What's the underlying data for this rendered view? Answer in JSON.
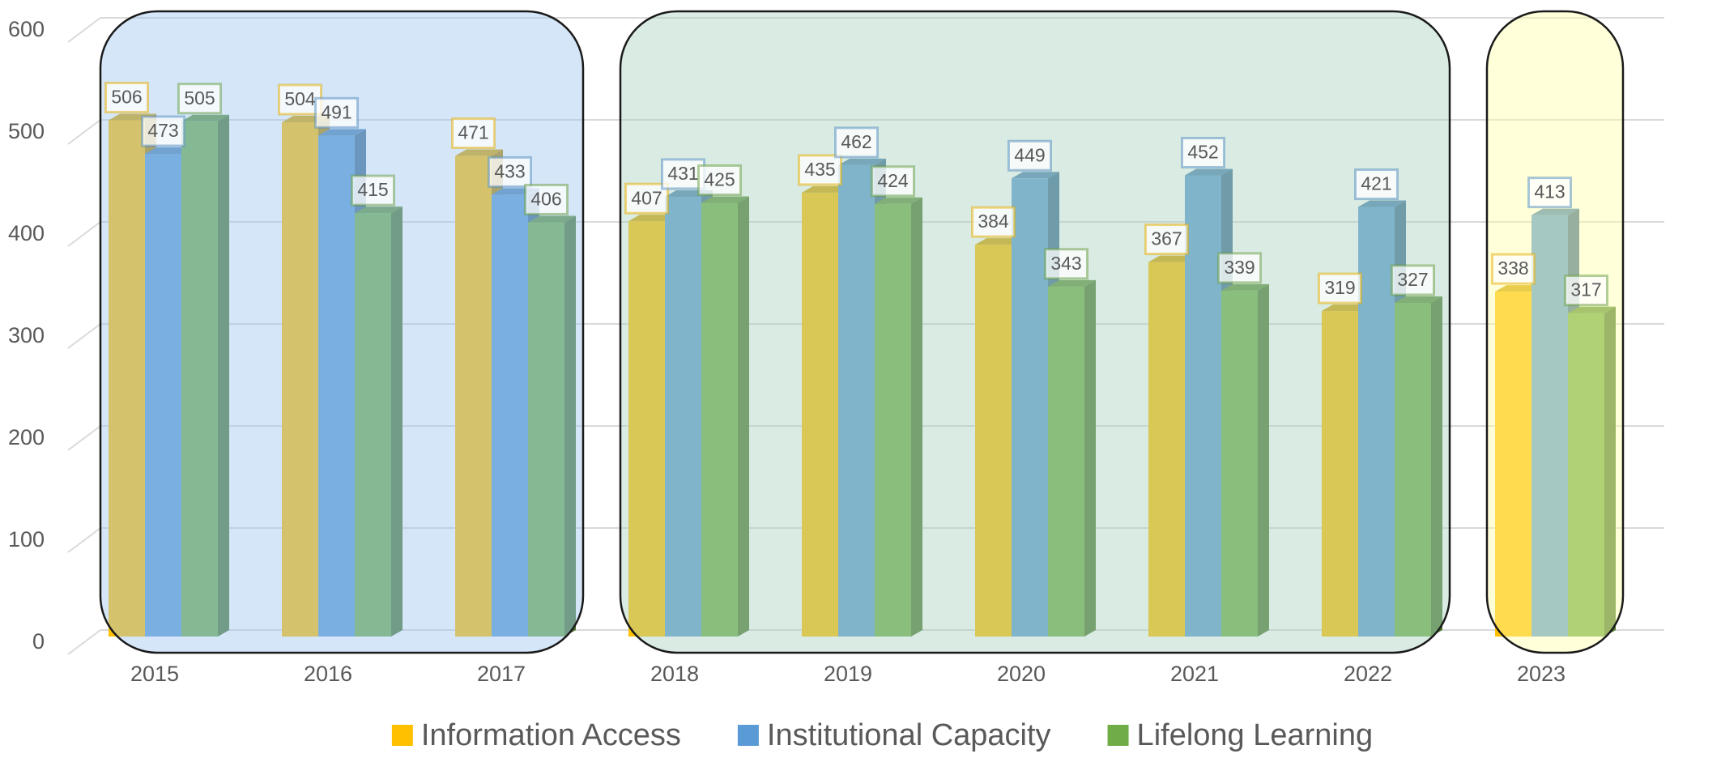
{
  "chart_data": {
    "type": "bar",
    "categories": [
      "2015",
      "2016",
      "2017",
      "2018",
      "2019",
      "2020",
      "2021",
      "2022",
      "2023"
    ],
    "series": [
      {
        "name": "Information Access",
        "color": "#ffc000",
        "values": [
          506,
          504,
          471,
          407,
          435,
          384,
          367,
          319,
          338
        ]
      },
      {
        "name": "Institutional Capacity",
        "color": "#5b9bd5",
        "values": [
          473,
          491,
          433,
          431,
          462,
          449,
          452,
          421,
          413
        ]
      },
      {
        "name": "Lifelong Learning",
        "color": "#70ad47",
        "values": [
          505,
          415,
          406,
          425,
          424,
          343,
          339,
          327,
          317
        ]
      }
    ],
    "ylim": [
      0,
      600
    ],
    "yticks": [
      0,
      100,
      200,
      300,
      400,
      500,
      600
    ],
    "grid": true,
    "legend": "bottom"
  }
}
